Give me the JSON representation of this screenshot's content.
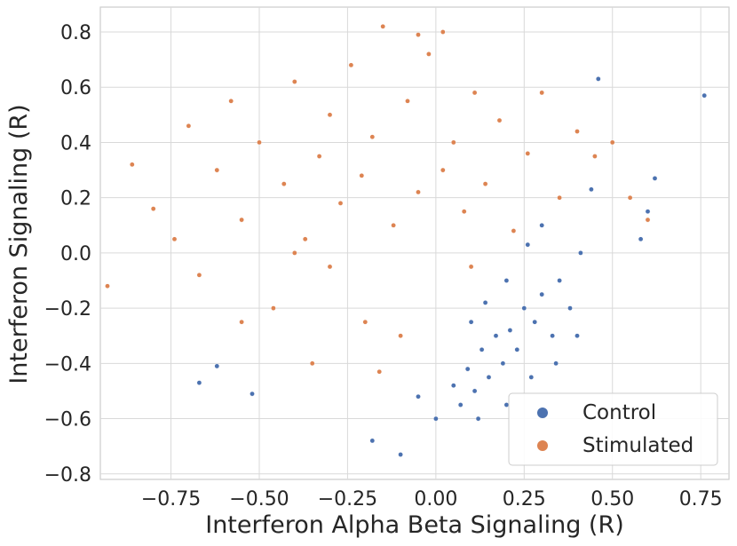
{
  "chart_data": {
    "type": "scatter",
    "title": "",
    "xlabel": "Interferon Alpha Beta Signaling (R)",
    "ylabel": "Interferon Signaling (R)",
    "xlim": [
      -0.95,
      0.83
    ],
    "ylim": [
      -0.82,
      0.89
    ],
    "xticks": [
      -0.75,
      -0.5,
      -0.25,
      0.0,
      0.25,
      0.5,
      0.75
    ],
    "xtick_labels": [
      "−0.75",
      "−0.50",
      "−0.25",
      "0.00",
      "0.25",
      "0.50",
      "0.75"
    ],
    "yticks": [
      0.8,
      0.6,
      0.4,
      0.2,
      0.0,
      -0.2,
      -0.4,
      -0.6,
      -0.8
    ],
    "ytick_labels": [
      "0.8",
      "0.6",
      "0.4",
      "0.2",
      "0.0",
      "−0.2",
      "−0.4",
      "−0.6",
      "−0.8"
    ],
    "grid": true,
    "legend_position": "bottom-right",
    "series": [
      {
        "name": "Control",
        "color": "#4c72b0",
        "points": [
          [
            0.76,
            0.57
          ],
          [
            0.62,
            0.27
          ],
          [
            0.6,
            0.15
          ],
          [
            0.58,
            0.05
          ],
          [
            0.46,
            0.63
          ],
          [
            0.44,
            0.23
          ],
          [
            0.41,
            0.0
          ],
          [
            0.38,
            -0.2
          ],
          [
            0.35,
            -0.1
          ],
          [
            0.33,
            -0.3
          ],
          [
            0.3,
            -0.15
          ],
          [
            0.28,
            -0.25
          ],
          [
            0.25,
            -0.2
          ],
          [
            0.23,
            -0.35
          ],
          [
            0.21,
            -0.28
          ],
          [
            0.19,
            -0.4
          ],
          [
            0.17,
            -0.3
          ],
          [
            0.15,
            -0.45
          ],
          [
            0.13,
            -0.35
          ],
          [
            0.11,
            -0.5
          ],
          [
            0.09,
            -0.42
          ],
          [
            0.07,
            -0.55
          ],
          [
            0.05,
            -0.48
          ],
          [
            0.3,
            0.1
          ],
          [
            0.26,
            0.03
          ],
          [
            0.2,
            -0.1
          ],
          [
            0.14,
            -0.18
          ],
          [
            0.1,
            -0.25
          ],
          [
            0.34,
            -0.4
          ],
          [
            0.4,
            -0.3
          ],
          [
            -0.18,
            -0.68
          ],
          [
            -0.1,
            -0.73
          ],
          [
            -0.52,
            -0.51
          ],
          [
            -0.67,
            -0.47
          ],
          [
            -0.62,
            -0.41
          ],
          [
            0.2,
            -0.55
          ],
          [
            0.0,
            -0.6
          ],
          [
            -0.05,
            -0.52
          ],
          [
            0.12,
            -0.6
          ],
          [
            0.27,
            -0.45
          ]
        ]
      },
      {
        "name": "Stimulated",
        "color": "#dd8452",
        "points": [
          [
            -0.93,
            -0.12
          ],
          [
            -0.86,
            0.32
          ],
          [
            -0.8,
            0.16
          ],
          [
            -0.74,
            0.05
          ],
          [
            -0.7,
            0.46
          ],
          [
            -0.67,
            -0.08
          ],
          [
            -0.62,
            0.3
          ],
          [
            -0.58,
            0.55
          ],
          [
            -0.55,
            0.12
          ],
          [
            -0.5,
            0.4
          ],
          [
            -0.46,
            -0.2
          ],
          [
            -0.43,
            0.25
          ],
          [
            -0.4,
            0.62
          ],
          [
            -0.37,
            0.05
          ],
          [
            -0.33,
            0.35
          ],
          [
            -0.3,
            0.5
          ],
          [
            -0.27,
            0.18
          ],
          [
            -0.24,
            0.68
          ],
          [
            -0.21,
            0.28
          ],
          [
            -0.18,
            0.42
          ],
          [
            -0.15,
            0.82
          ],
          [
            -0.12,
            0.1
          ],
          [
            -0.08,
            0.55
          ],
          [
            -0.05,
            0.22
          ],
          [
            -0.02,
            0.72
          ],
          [
            0.02,
            0.3
          ],
          [
            0.05,
            0.4
          ],
          [
            0.08,
            0.15
          ],
          [
            0.11,
            0.58
          ],
          [
            0.14,
            0.25
          ],
          [
            0.18,
            0.48
          ],
          [
            0.22,
            0.08
          ],
          [
            0.26,
            0.36
          ],
          [
            0.3,
            0.58
          ],
          [
            0.35,
            0.2
          ],
          [
            0.4,
            0.44
          ],
          [
            0.45,
            0.35
          ],
          [
            0.5,
            0.4
          ],
          [
            0.55,
            0.2
          ],
          [
            0.6,
            0.12
          ],
          [
            -0.3,
            -0.05
          ],
          [
            -0.2,
            -0.25
          ],
          [
            -0.1,
            -0.3
          ],
          [
            -0.35,
            -0.4
          ],
          [
            -0.16,
            -0.43
          ],
          [
            -0.05,
            0.79
          ],
          [
            0.02,
            0.8
          ],
          [
            -0.4,
            0.0
          ],
          [
            -0.55,
            -0.25
          ],
          [
            0.1,
            -0.05
          ]
        ]
      }
    ]
  }
}
